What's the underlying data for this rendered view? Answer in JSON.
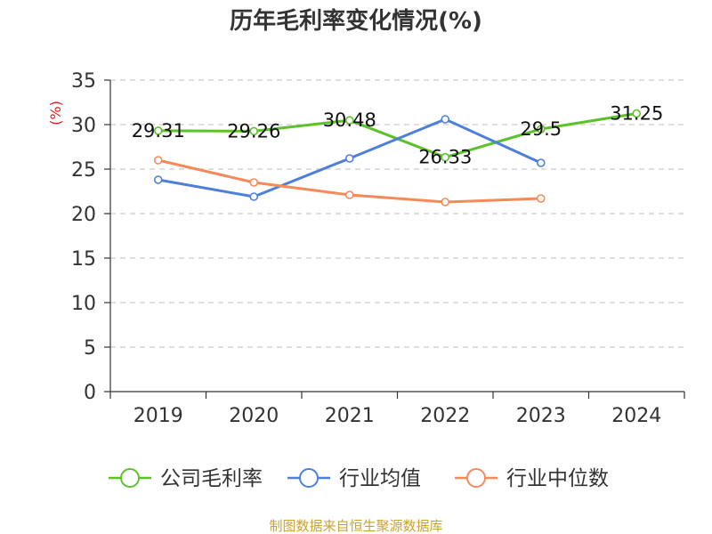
{
  "chart_data": {
    "type": "line",
    "title": "历年毛利率变化情况(%)",
    "ylabel": "(%)",
    "ylim": [
      0,
      35
    ],
    "yticks": [
      0,
      5,
      10,
      15,
      20,
      25,
      30,
      35
    ],
    "categories": [
      "2019",
      "2020",
      "2021",
      "2022",
      "2023",
      "2024"
    ],
    "grid": true,
    "legend_position": "bottom",
    "series": [
      {
        "name": "公司毛利率",
        "color": "#5cc22a",
        "values": [
          29.31,
          29.26,
          30.48,
          26.33,
          29.5,
          31.25
        ],
        "labels": [
          "29.31",
          "29.26",
          "30.48",
          "26.33",
          "29.5",
          "31.25"
        ]
      },
      {
        "name": "行业均值",
        "color": "#4d7fdb",
        "values": [
          23.8,
          21.9,
          26.2,
          30.6,
          25.7,
          null
        ],
        "labels": null
      },
      {
        "name": "行业中位数",
        "color": "#f58a58",
        "values": [
          26.0,
          23.5,
          22.1,
          21.3,
          21.7,
          null
        ],
        "labels": null
      }
    ]
  },
  "source_text": "制图数据来自恒生聚源数据库"
}
